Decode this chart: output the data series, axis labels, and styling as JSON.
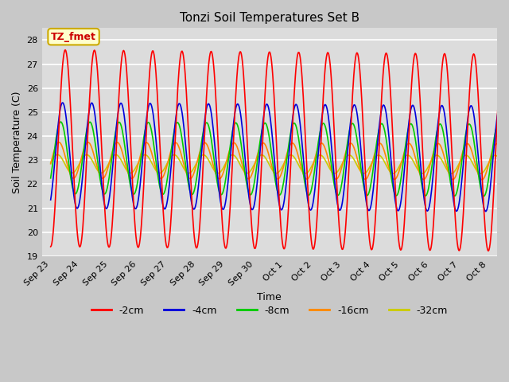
{
  "title": "Tonzi Soil Temperatures Set B",
  "xlabel": "Time",
  "ylabel": "Soil Temperature (C)",
  "ylim": [
    19.0,
    28.5
  ],
  "yticks": [
    19.0,
    20.0,
    21.0,
    22.0,
    23.0,
    24.0,
    25.0,
    26.0,
    27.0,
    28.0
  ],
  "xtick_labels": [
    "Sep 23",
    "Sep 24",
    "Sep 25",
    "Sep 26",
    "Sep 27",
    "Sep 28",
    "Sep 29",
    "Sep 30",
    "Oct 1",
    "Oct 2",
    "Oct 3",
    "Oct 4",
    "Oct 5",
    "Oct 6",
    "Oct 7",
    "Oct 8"
  ],
  "legend_labels": [
    "-2cm",
    "-4cm",
    "-8cm",
    "-16cm",
    "-32cm"
  ],
  "legend_colors": [
    "#ff0000",
    "#0000dd",
    "#00cc00",
    "#ff8800",
    "#cccc00"
  ],
  "annotation_text": "TZ_fmet",
  "annotation_bg": "#ffffcc",
  "annotation_border": "#ccaa00",
  "annotation_color": "#cc0000",
  "plot_bg": "#dcdcdc",
  "n_days": 16,
  "samples_per_day": 48,
  "amp_2cm": 4.1,
  "amp_4cm": 2.2,
  "amp_8cm": 1.5,
  "amp_16cm": 0.75,
  "amp_32cm": 0.38,
  "phase_2cm": -1.5707963,
  "phase_4cm": -1.0,
  "phase_8cm": -0.6,
  "phase_16cm": -0.2,
  "phase_32cm": 0.1,
  "mean_2cm": 23.5,
  "mean_4cm": 23.2,
  "mean_8cm": 23.1,
  "mean_16cm": 23.0,
  "mean_32cm": 22.85,
  "lw": 1.2
}
